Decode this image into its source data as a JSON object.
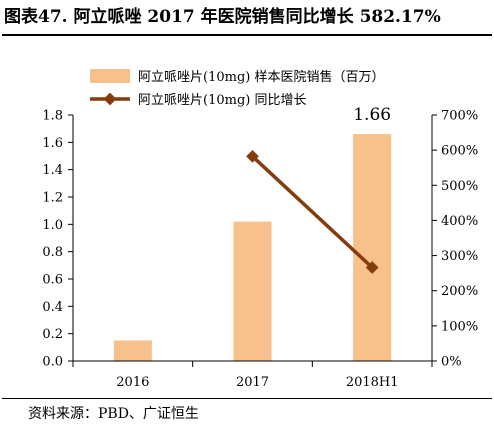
{
  "title": "图表47. 阿立哌唑 2017 年医院销售同比增长 582.17%",
  "source": "资料来源：PBD、广证恒生",
  "colors": {
    "bar": "#F8C08A",
    "line": "#843C0C",
    "axis": "#000000"
  },
  "chart_data": {
    "type": "bar",
    "categories": [
      "2016",
      "2017",
      "2018H1"
    ],
    "series": [
      {
        "name": "阿立哌唑片(10mg) 样本医院销售（百万）",
        "type": "bar",
        "axis": "left",
        "values": [
          0.15,
          1.02,
          1.66
        ]
      },
      {
        "name": "阿立哌唑片(10mg) 同比增长",
        "type": "line",
        "axis": "right",
        "values": [
          null,
          582.17,
          266
        ]
      }
    ],
    "data_labels": [
      {
        "category": "2018H1",
        "text": "1.66"
      }
    ],
    "y_left": {
      "min": 0,
      "max": 1.8,
      "ticks": [
        "0.0",
        "0.2",
        "0.4",
        "0.6",
        "0.8",
        "1.0",
        "1.2",
        "1.4",
        "1.6",
        "1.8"
      ]
    },
    "y_right": {
      "min": 0,
      "max": 700,
      "ticks": [
        "0%",
        "100%",
        "200%",
        "300%",
        "400%",
        "500%",
        "600%",
        "700%"
      ]
    },
    "legend": "top-center",
    "grid": false
  }
}
